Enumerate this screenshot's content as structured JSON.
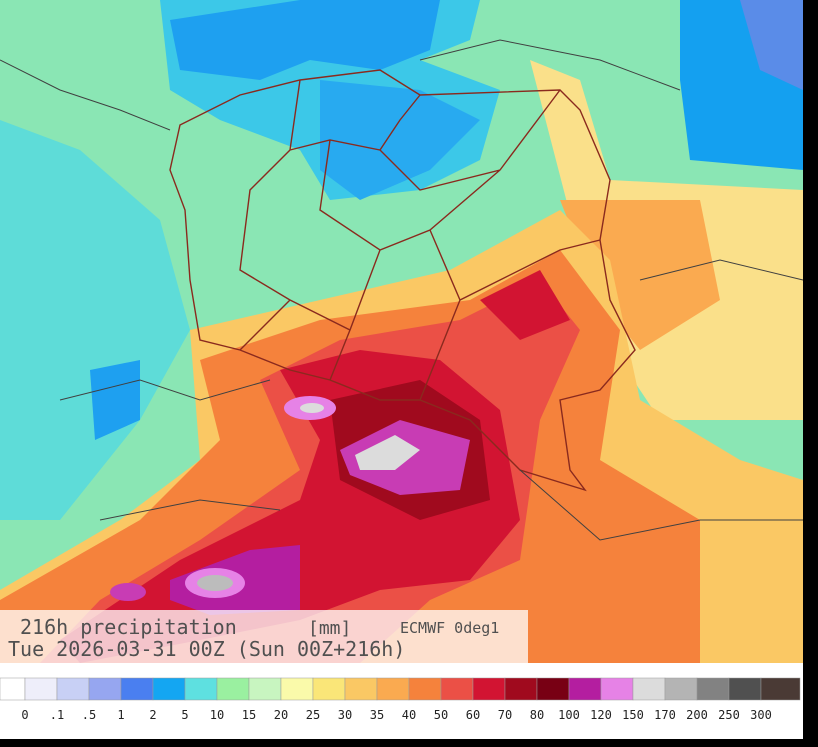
{
  "title": "216h precipitation",
  "unit": "[mm]",
  "model": "ECMWF 0deg1",
  "valid": "Tue 2026-03-31 00Z (Sun 00Z+216h)",
  "legend": {
    "labels": [
      "0",
      ".1",
      ".5",
      "1",
      "2",
      "5",
      "10",
      "15",
      "20",
      "25",
      "30",
      "35",
      "40",
      "50",
      "60",
      "70",
      "80",
      "100",
      "120",
      "150",
      "170",
      "200",
      "250",
      "300"
    ],
    "colors": [
      "#ffffff",
      "#eeeefa",
      "#c8d0f5",
      "#96a6f0",
      "#4a7ff0",
      "#14a6f2",
      "#5ee0e0",
      "#9af0a0",
      "#c8f5c0",
      "#fafaaa",
      "#fae678",
      "#fac864",
      "#faaa50",
      "#f5823c",
      "#eb5046",
      "#d21432",
      "#a00a1e",
      "#780014",
      "#b41ea0",
      "#e682e6",
      "#dcdcdc",
      "#b4b4b4",
      "#828282",
      "#505050",
      "#4a3a35"
    ]
  }
}
